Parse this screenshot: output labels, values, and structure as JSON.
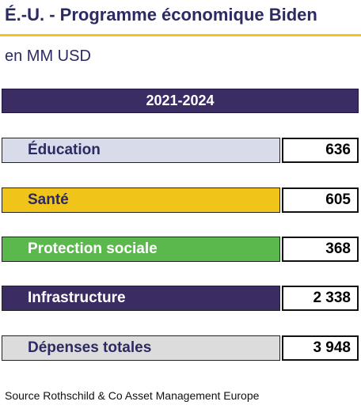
{
  "title": "É.-U. - Programme économique Biden",
  "subtitle": "en MM USD",
  "period": "2021-2024",
  "rows": [
    {
      "label": "Éducation",
      "value": "636",
      "bg": "#d7dbea",
      "fg": "#2b2a63"
    },
    {
      "label": "Santé",
      "value": "605",
      "bg": "#f0c419",
      "fg": "#2b2a63"
    },
    {
      "label": "Protection sociale",
      "value": "368",
      "bg": "#5bb84c",
      "fg": "#ffffff"
    },
    {
      "label": "Infrastructure",
      "value": "2 338",
      "bg": "#3b2d63",
      "fg": "#ffffff"
    },
    {
      "label": "Dépenses totales",
      "value": "3 948",
      "bg": "#dcdcdc",
      "fg": "#2b2a63"
    }
  ],
  "source": "Source Rothschild & Co Asset Management Europe"
}
